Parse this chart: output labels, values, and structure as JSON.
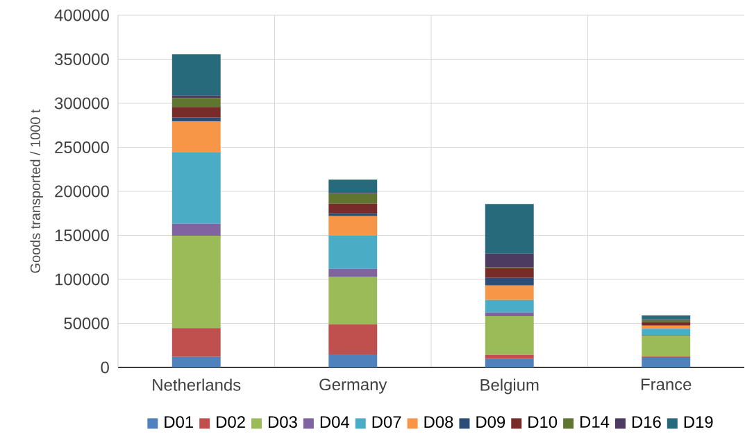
{
  "chart_data": {
    "type": "bar",
    "stacked": true,
    "ylabel": "Goods transported / 1000 t",
    "categories": [
      "Netherlands",
      "Germany",
      "Belgium",
      "France"
    ],
    "series": [
      {
        "name": "D01",
        "color": "#4f81bd",
        "values": [
          12000,
          15000,
          9700,
          11000
        ]
      },
      {
        "name": "D02",
        "color": "#c0504d",
        "values": [
          32600,
          34100,
          4700,
          1400
        ]
      },
      {
        "name": "D03",
        "color": "#9bbb59",
        "values": [
          105000,
          54000,
          43900,
          23600
        ]
      },
      {
        "name": "D04",
        "color": "#8064a2",
        "values": [
          13600,
          9000,
          4100,
          1000
        ]
      },
      {
        "name": "D07",
        "color": "#4bacc6",
        "values": [
          80900,
          37500,
          14200,
          6900
        ]
      },
      {
        "name": "D08",
        "color": "#f79646",
        "values": [
          35200,
          22300,
          16600,
          3600
        ]
      },
      {
        "name": "D09",
        "color": "#2c4d75",
        "values": [
          4700,
          3100,
          8600,
          500
        ]
      },
      {
        "name": "D10",
        "color": "#772c2a",
        "values": [
          11800,
          11100,
          11000,
          3400
        ]
      },
      {
        "name": "D14",
        "color": "#5f7530",
        "values": [
          10300,
          11000,
          1400,
          2400
        ]
      },
      {
        "name": "D16",
        "color": "#4d3b62",
        "values": [
          2800,
          1100,
          15200,
          800
        ]
      },
      {
        "name": "D19",
        "color": "#276a7c",
        "values": [
          46800,
          15200,
          56200,
          4500
        ]
      }
    ],
    "ylim": [
      0,
      400000
    ],
    "yticks": [
      0,
      50000,
      100000,
      150000,
      200000,
      250000,
      300000,
      350000,
      400000
    ],
    "grid": true,
    "legend": "bottom"
  }
}
